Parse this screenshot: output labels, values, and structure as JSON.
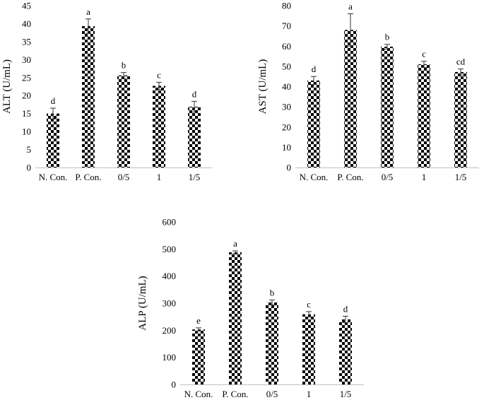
{
  "chart_data": [
    {
      "type": "bar",
      "ylabel": "ALT (U/mL)",
      "categories": [
        "N. Con.",
        "P. Con.",
        "0/5",
        "1",
        "1/5"
      ],
      "values": [
        15.0,
        39.3,
        25.6,
        22.7,
        16.9
      ],
      "errors": [
        1.5,
        2.0,
        0.8,
        1.0,
        1.5
      ],
      "significance": [
        "d",
        "a",
        "b",
        "c",
        "d"
      ],
      "ylim": [
        0,
        45
      ],
      "yticks": [
        0,
        5,
        10,
        15,
        20,
        25,
        30,
        35,
        40,
        45
      ]
    },
    {
      "type": "bar",
      "ylabel": "AST (U/mL)",
      "categories": [
        "N. Con.",
        "P. Con.",
        "0/5",
        "1",
        "1/5"
      ],
      "values": [
        43.0,
        68.0,
        59.7,
        51.0,
        47.2
      ],
      "errors": [
        2.0,
        8.0,
        1.2,
        1.5,
        1.5
      ],
      "significance": [
        "d",
        "a",
        "b",
        "c",
        "cd"
      ],
      "ylim": [
        0,
        80
      ],
      "yticks": [
        0,
        10,
        20,
        30,
        40,
        50,
        60,
        70,
        80
      ]
    },
    {
      "type": "bar",
      "ylabel": "ALP (U/mL)",
      "categories": [
        "N. Con.",
        "P. Con.",
        "0/5",
        "1",
        "1/5"
      ],
      "values": [
        203,
        488,
        303,
        259,
        240
      ],
      "errors": [
        6,
        5,
        9,
        10,
        12
      ],
      "significance": [
        "e",
        "a",
        "b",
        "c",
        "d"
      ],
      "ylim": [
        0,
        600
      ],
      "yticks": [
        0,
        100,
        200,
        300,
        400,
        500,
        600
      ]
    }
  ],
  "style": {
    "bar_pattern": "checkerboard",
    "pattern_dark": "#000000",
    "pattern_light": "#ffffff",
    "axis_color": "#bfbfbf",
    "error_color": "#333333"
  }
}
